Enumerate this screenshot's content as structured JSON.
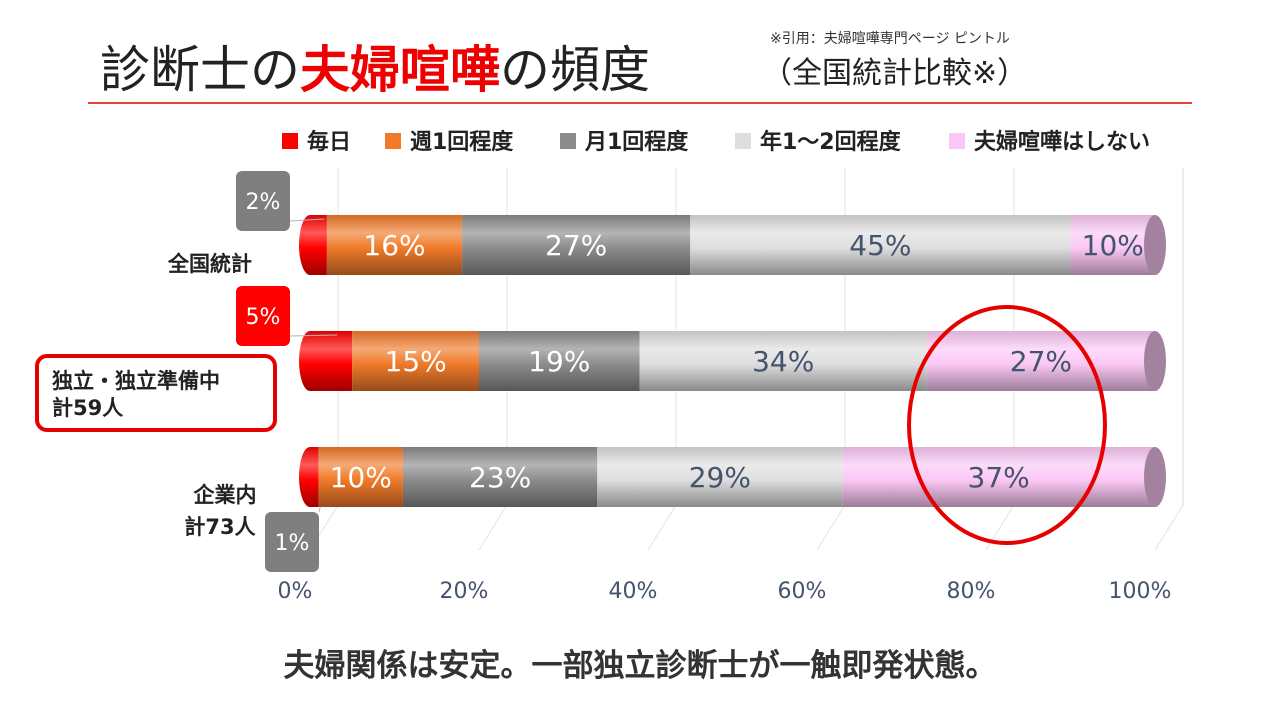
{
  "header": {
    "title_pre": "診断士の",
    "title_highlight": "夫婦喧嘩",
    "title_post": "の頻度",
    "subtitle": "（全国統計比較※）",
    "citation": "※引用：夫婦喧嘩専門ページ ピントル"
  },
  "footer": {
    "conclusion": "夫婦関係は安定。一部独立診断士が一触即発状態。"
  },
  "chart_data": {
    "type": "bar",
    "orientation": "horizontal",
    "stacked": true,
    "style": "3d-cylinder",
    "categories": [
      "全国統計",
      "独立・独立準備中\n計59人",
      "企業内\n計73人"
    ],
    "series": [
      {
        "name": "毎日",
        "color": "#ff0000",
        "values": [
          2,
          5,
          1
        ]
      },
      {
        "name": "週1回程度",
        "color": "#f07a2a",
        "values": [
          16,
          15,
          10
        ]
      },
      {
        "name": "月1回程度",
        "color": "#8c8c8c",
        "values": [
          27,
          19,
          23
        ]
      },
      {
        "name": "年1～2回程度",
        "color": "#dedede",
        "values": [
          45,
          34,
          29
        ]
      },
      {
        "name": "夫婦喧嘩はしない",
        "color": "#fbc8f5",
        "values": [
          10,
          27,
          37
        ]
      }
    ],
    "value_format": "{v}%",
    "x_ticks": [
      "0%",
      "20%",
      "40%",
      "60%",
      "80%",
      "100%"
    ],
    "xlim": [
      0,
      100
    ],
    "grid": true,
    "legend_position": "top",
    "highlighted_category": "独立・独立準備中\n計59人",
    "annotation": "red ellipse around 夫婦喧嘩はしない for 独立・独立準備中 and 企業内"
  }
}
